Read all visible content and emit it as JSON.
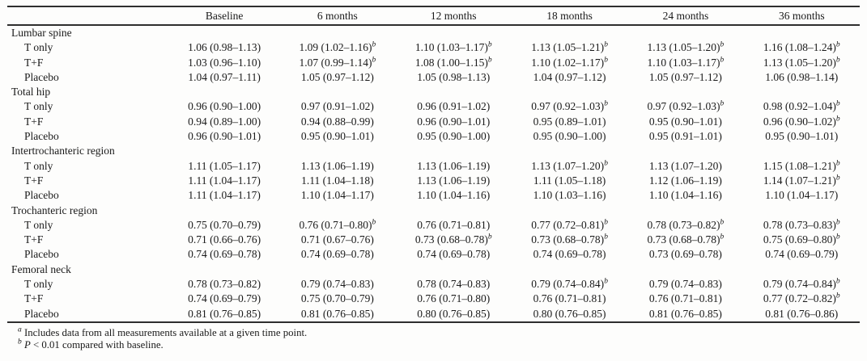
{
  "colors": {
    "background": "#fdfdfc",
    "text": "#1a1a1a",
    "rule": "#2e2e2e"
  },
  "table": {
    "header": [
      "Baseline",
      "6 months",
      "12 months",
      "18 months",
      "24 months",
      "36 months"
    ],
    "groups": [
      {
        "label": "Lumbar spine",
        "rows": [
          {
            "label": "T only",
            "cells": [
              "1.06 (0.98–1.13)",
              "1.09 (1.02–1.16)^b",
              "1.10 (1.03–1.17)^b",
              "1.13 (1.05–1.21)^b",
              "1.13 (1.05–1.20)^b",
              "1.16 (1.08–1.24)^b"
            ]
          },
          {
            "label": "T+F",
            "cells": [
              "1.03 (0.96–1.10)",
              "1.07 (0.99–1.14)^b",
              "1.08 (1.00–1.15)^b",
              "1.10 (1.02–1.17)^b",
              "1.10 (1.03–1.17)^b",
              "1.13 (1.05–1.20)^b"
            ]
          },
          {
            "label": "Placebo",
            "cells": [
              "1.04 (0.97–1.11)",
              "1.05 (0.97–1.12)",
              "1.05 (0.98–1.13)",
              "1.04 (0.97–1.12)",
              "1.05 (0.97–1.12)",
              "1.06 (0.98–1.14)"
            ]
          }
        ]
      },
      {
        "label": "Total hip",
        "rows": [
          {
            "label": "T only",
            "cells": [
              "0.96 (0.90–1.00)",
              "0.97 (0.91–1.02)",
              "0.96 (0.91–1.02)",
              "0.97 (0.92–1.03)^b",
              "0.97 (0.92–1.03)^b",
              "0.98 (0.92–1.04)^b"
            ]
          },
          {
            "label": "T+F",
            "cells": [
              "0.94 (0.89–1.00)",
              "0.94 (0.88–0.99)",
              "0.96 (0.90–1.01)",
              "0.95 (0.89–1.01)",
              "0.95 (0.90–1.01)",
              "0.96 (0.90–1.02)^b"
            ]
          },
          {
            "label": "Placebo",
            "cells": [
              "0.96 (0.90–1.01)",
              "0.95 (0.90–1.01)",
              "0.95 (0.90–1.00)",
              "0.95 (0.90–1.00)",
              "0.95 (0.91–1.01)",
              "0.95 (0.90–1.01)"
            ]
          }
        ]
      },
      {
        "label": "Intertrochanteric region",
        "rows": [
          {
            "label": "T only",
            "cells": [
              "1.11 (1.05–1.17)",
              "1.13 (1.06–1.19)",
              "1.13 (1.06–1.19)",
              "1.13 (1.07–1.20)^b",
              "1.13 (1.07–1.20)",
              "1.15 (1.08–1.21)^b"
            ]
          },
          {
            "label": "T+F",
            "cells": [
              "1.11 (1.04–1.17)",
              "1.11 (1.04–1.18)",
              "1.13 (1.06–1.19)",
              "1.11 (1.05–1.18)",
              "1.12 (1.06–1.19)",
              "1.14 (1.07–1.21)^b"
            ]
          },
          {
            "label": "Placebo",
            "cells": [
              "1.11 (1.04–1.17)",
              "1.10 (1.04–1.17)",
              "1.10 (1.04–1.16)",
              "1.10 (1.03–1.16)",
              "1.10 (1.04–1.16)",
              "1.10 (1.04–1.17)"
            ]
          }
        ]
      },
      {
        "label": "Trochanteric region",
        "rows": [
          {
            "label": "T only",
            "cells": [
              "0.75 (0.70–0.79)",
              "0.76 (0.71–0.80)^b",
              "0.76 (0.71–0.81)",
              "0.77 (0.72–0.81)^b",
              "0.78 (0.73–0.82)^b",
              "0.78 (0.73–0.83)^b"
            ]
          },
          {
            "label": "T+F",
            "cells": [
              "0.71 (0.66–0.76)",
              "0.71 (0.67–0.76)",
              "0.73 (0.68–0.78)^b",
              "0.73 (0.68–0.78)^b",
              "0.73 (0.68–0.78)^b",
              "0.75 (0.69–0.80)^b"
            ]
          },
          {
            "label": "Placebo",
            "cells": [
              "0.74 (0.69–0.78)",
              "0.74 (0.69–0.78)",
              "0.74 (0.69–0.78)",
              "0.74 (0.69–0.78)",
              "0.73 (0.69–0.78)",
              "0.74 (0.69–0.79)"
            ]
          }
        ]
      },
      {
        "label": "Femoral neck",
        "rows": [
          {
            "label": "T only",
            "cells": [
              "0.78 (0.73–0.82)",
              "0.79 (0.74–0.83)",
              "0.78 (0.74–0.83)",
              "0.79 (0.74–0.84)^b",
              "0.79 (0.74–0.83)",
              "0.79 (0.74–0.84)^b"
            ]
          },
          {
            "label": "T+F",
            "cells": [
              "0.74 (0.69–0.79)",
              "0.75 (0.70–0.79)",
              "0.76 (0.71–0.80)",
              "0.76 (0.71–0.81)",
              "0.76 (0.71–0.81)",
              "0.77 (0.72–0.82)^b"
            ]
          },
          {
            "label": "Placebo",
            "cells": [
              "0.81 (0.76–0.85)",
              "0.81 (0.76–0.85)",
              "0.80 (0.76–0.85)",
              "0.80 (0.76–0.85)",
              "0.81 (0.76–0.85)",
              "0.81 (0.76–0.86)"
            ]
          }
        ]
      }
    ],
    "footnotes": [
      {
        "marker": "a",
        "italic_lead": "",
        "text": "Includes data from all measurements available at a given time point."
      },
      {
        "marker": "b",
        "italic_lead": "P",
        "text": "< 0.01 compared with baseline."
      }
    ]
  }
}
